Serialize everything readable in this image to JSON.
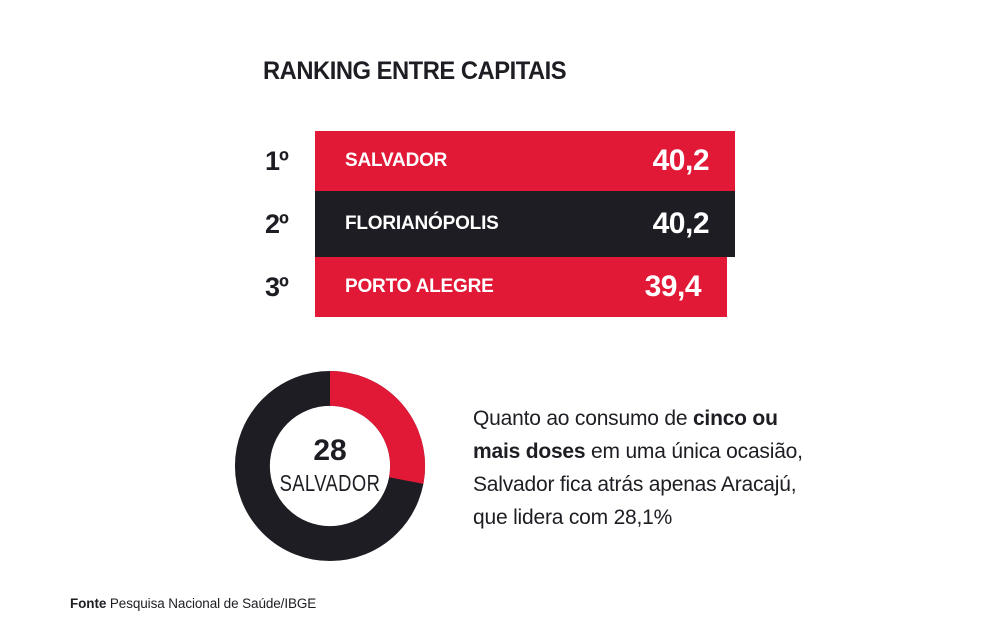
{
  "colors": {
    "red": "#e11937",
    "dark": "#1d1d23",
    "background": "#ffffff",
    "bar_text": "#ffffff"
  },
  "chart_data": [
    {
      "type": "bar",
      "orientation": "horizontal",
      "title": "RANKING ENTRE CAPITAIS",
      "categories": [
        "SALVADOR",
        "FLORIANÓPOLIS",
        "PORTO ALEGRE"
      ],
      "values": [
        40.2,
        40.2,
        39.4
      ],
      "xlim": [
        0,
        40.2
      ],
      "grid": false,
      "legend": false,
      "rows": [
        {
          "rank": "1º",
          "label": "SALVADOR",
          "value_label": "40,2",
          "color": "#e11937"
        },
        {
          "rank": "2º",
          "label": "FLORIANÓPOLIS",
          "value_label": "40,2",
          "color": "#1d1d23"
        },
        {
          "rank": "3º",
          "label": "PORTO ALEGRE",
          "value_label": "39,4",
          "color": "#e11937"
        }
      ]
    },
    {
      "type": "pie",
      "style": "donut",
      "start_angle_deg": 0,
      "direction": "clockwise",
      "center_value": "28",
      "center_label": "SALVADOR",
      "slices": [
        {
          "label": "SALVADOR",
          "value": 28,
          "color": "#e11937"
        },
        {
          "label": "",
          "value": 72,
          "color": "#1d1d23"
        }
      ]
    }
  ],
  "annotation": {
    "lines": [
      {
        "normal": "Quanto ao consumo de ",
        "bold": "cinco ou"
      },
      {
        "bold": "mais doses",
        "normal": " em uma única ocasião,"
      },
      {
        "normal": "Salvador fica atrás apenas Aracajú,"
      },
      {
        "normal": "que lidera com 28,1%"
      }
    ]
  },
  "footer": {
    "label": "Fonte",
    "text": " Pesquisa Nacional de Saúde/IBGE"
  }
}
